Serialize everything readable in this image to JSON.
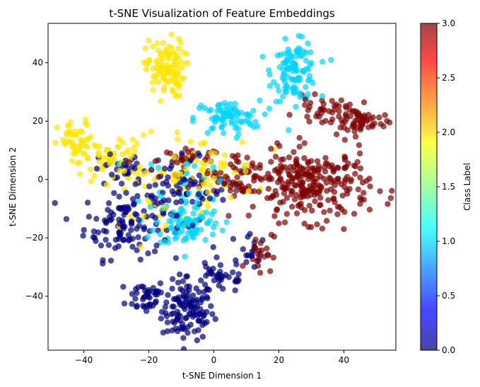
{
  "chart_data": {
    "type": "scatter",
    "title": "t-SNE Visualization of Feature Embeddings",
    "xlabel": "t-SNE Dimension 1",
    "ylabel": "t-SNE Dimension 2",
    "xlim": [
      -51,
      56
    ],
    "ylim": [
      -58.5,
      53.5
    ],
    "xticks": [
      -40,
      -20,
      0,
      20,
      40
    ],
    "yticks": [
      -40,
      -20,
      0,
      20,
      40
    ],
    "grid": false,
    "colormap": "jet",
    "point_alpha": 0.7,
    "colorbar": {
      "label": "Class Label",
      "range": [
        0,
        3
      ],
      "ticks": [
        "0.0",
        "0.5",
        "1.0",
        "1.5",
        "2.0",
        "2.5",
        "3.0"
      ]
    },
    "classes": [
      {
        "label": 0,
        "color": "#00007f",
        "clusters": [
          {
            "cx": -8,
            "cy": -45,
            "sx": 4,
            "sy": 5,
            "n": 120
          },
          {
            "cx": -21,
            "cy": -40,
            "sx": 3,
            "sy": 3,
            "n": 40
          },
          {
            "cx": -28,
            "cy": -15,
            "sx": 6,
            "sy": 6,
            "n": 100
          },
          {
            "cx": -12,
            "cy": -5,
            "sx": 8,
            "sy": 6,
            "n": 90
          },
          {
            "cx": 2,
            "cy": -33,
            "sx": 5,
            "sy": 3,
            "n": 40
          },
          {
            "cx": -30,
            "cy": 3,
            "sx": 4,
            "sy": 3,
            "n": 25
          },
          {
            "cx": 12,
            "cy": -25,
            "sx": 2,
            "sy": 3,
            "n": 15
          }
        ]
      },
      {
        "label": 1,
        "color": "#00d4ff",
        "clusters": [
          {
            "cx": 25,
            "cy": 37,
            "sx": 3.5,
            "sy": 5,
            "n": 110
          },
          {
            "cx": 4,
            "cy": 21,
            "sx": 5,
            "sy": 3,
            "n": 80
          },
          {
            "cx": -8,
            "cy": -15,
            "sx": 5,
            "sy": 4,
            "n": 90
          },
          {
            "cx": -8,
            "cy": 0,
            "sx": 8,
            "sy": 5,
            "n": 30
          }
        ]
      },
      {
        "label": 2,
        "color": "#ffe500",
        "clusters": [
          {
            "cx": -15,
            "cy": 38,
            "sx": 3,
            "sy": 5,
            "n": 110
          },
          {
            "cx": -42,
            "cy": 12,
            "sx": 3,
            "sy": 4,
            "n": 50
          },
          {
            "cx": -30,
            "cy": 7,
            "sx": 5,
            "sy": 4,
            "n": 60
          },
          {
            "cx": -5,
            "cy": 3,
            "sx": 9,
            "sy": 6,
            "n": 70
          },
          {
            "cx": -18,
            "cy": -12,
            "sx": 5,
            "sy": 8,
            "n": 20
          }
        ]
      },
      {
        "label": 3,
        "color": "#7f0000",
        "clusters": [
          {
            "cx": 30,
            "cy": -2,
            "sx": 9,
            "sy": 6,
            "n": 260
          },
          {
            "cx": 45,
            "cy": 20,
            "sx": 4,
            "sy": 2.5,
            "n": 60
          },
          {
            "cx": 33,
            "cy": 24,
            "sx": 4,
            "sy": 2,
            "n": 35
          },
          {
            "cx": 8,
            "cy": 2,
            "sx": 6,
            "sy": 4,
            "n": 60
          },
          {
            "cx": 14,
            "cy": -25,
            "sx": 2,
            "sy": 3,
            "n": 20
          },
          {
            "cx": -12,
            "cy": 6,
            "sx": 6,
            "sy": 3,
            "n": 25
          }
        ]
      }
    ]
  }
}
